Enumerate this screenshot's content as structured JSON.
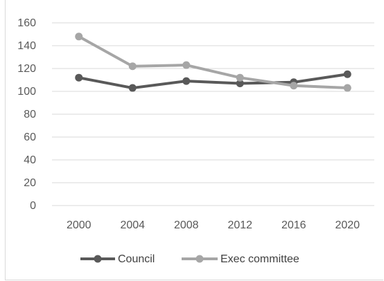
{
  "chart_data": {
    "type": "line",
    "x": [
      "2000",
      "2004",
      "2008",
      "2012",
      "2016",
      "2020"
    ],
    "series": [
      {
        "name": "Council",
        "values": [
          112,
          103,
          109,
          107,
          108,
          115
        ],
        "color": "#595959"
      },
      {
        "name": "Exec committee",
        "values": [
          148,
          122,
          123,
          112,
          105,
          103
        ],
        "color": "#a6a6a6"
      }
    ],
    "ylim": [
      0,
      160
    ],
    "yticks": [
      "0",
      "20",
      "40",
      "60",
      "80",
      "100",
      "120",
      "140",
      "160"
    ],
    "grid": true,
    "legend_position": "bottom",
    "title": "",
    "xlabel": "",
    "ylabel": ""
  }
}
